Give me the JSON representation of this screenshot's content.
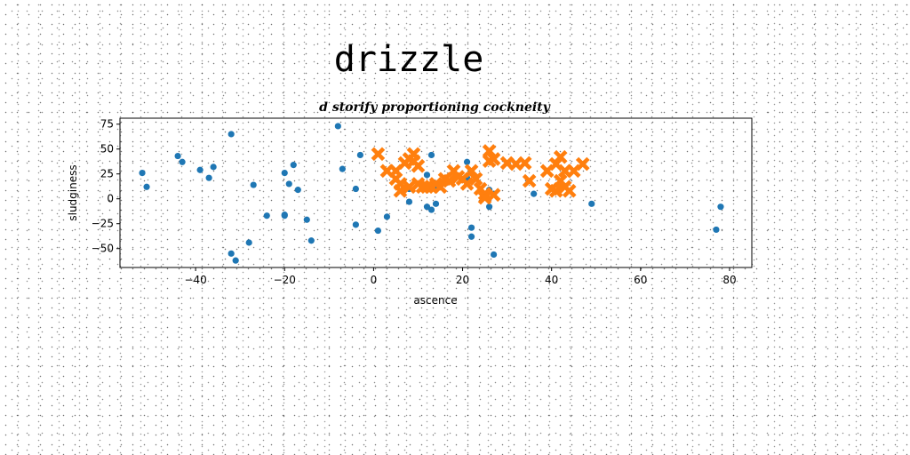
{
  "chart_data": {
    "type": "scatter",
    "title": "drizzle",
    "subtitle": "d storify proportioning cockneity",
    "xlabel": "ascence",
    "ylabel": "sludginess",
    "xlim": [
      -57,
      85
    ],
    "ylim": [
      -69,
      81
    ],
    "xticks": [
      -40,
      -20,
      0,
      20,
      40,
      60,
      80
    ],
    "yticks": [
      -50,
      -25,
      0,
      25,
      50,
      75
    ],
    "grid": false,
    "colors": {
      "series_0": "#1f77b4",
      "series_1": "#ff7f0e"
    },
    "series": [
      {
        "marker": "circle",
        "points": [
          [
            -52,
            26
          ],
          [
            -51,
            12
          ],
          [
            -44,
            43
          ],
          [
            -43,
            37
          ],
          [
            -39,
            29
          ],
          [
            -37,
            21
          ],
          [
            -36,
            32
          ],
          [
            -32,
            65
          ],
          [
            -32,
            -55
          ],
          [
            -31,
            -62
          ],
          [
            -28,
            -44
          ],
          [
            -27,
            14
          ],
          [
            -24,
            -17
          ],
          [
            -20,
            -17
          ],
          [
            -20,
            -16
          ],
          [
            -20,
            26
          ],
          [
            -19,
            15
          ],
          [
            -18,
            34
          ],
          [
            -17,
            9
          ],
          [
            -15,
            -21
          ],
          [
            -14,
            -42
          ],
          [
            -8,
            73
          ],
          [
            -7,
            30
          ],
          [
            -4,
            -26
          ],
          [
            -4,
            10
          ],
          [
            -3,
            44
          ],
          [
            1,
            -32
          ],
          [
            3,
            -18
          ],
          [
            8,
            10
          ],
          [
            8,
            -3
          ],
          [
            12,
            24
          ],
          [
            12,
            -8
          ],
          [
            13,
            -11
          ],
          [
            13,
            44
          ],
          [
            14,
            -5
          ],
          [
            14,
            12
          ],
          [
            21,
            37
          ],
          [
            21,
            21
          ],
          [
            22,
            -29
          ],
          [
            22,
            -38
          ],
          [
            26,
            -8
          ],
          [
            26,
            9
          ],
          [
            27,
            -56
          ],
          [
            27,
            5
          ],
          [
            36,
            5
          ],
          [
            49,
            -5
          ],
          [
            77,
            -31
          ],
          [
            78,
            -8
          ]
        ]
      },
      {
        "marker": "x",
        "points": [
          [
            1,
            45
          ],
          [
            3,
            28
          ],
          [
            5,
            28
          ],
          [
            5,
            20
          ],
          [
            6,
            15
          ],
          [
            6,
            8
          ],
          [
            7,
            36
          ],
          [
            8,
            40
          ],
          [
            8,
            12
          ],
          [
            9,
            45
          ],
          [
            9,
            38
          ],
          [
            10,
            33
          ],
          [
            10,
            15
          ],
          [
            11,
            12
          ],
          [
            12,
            12
          ],
          [
            13,
            12
          ],
          [
            14,
            15
          ],
          [
            15,
            12
          ],
          [
            16,
            20
          ],
          [
            17,
            18
          ],
          [
            18,
            28
          ],
          [
            19,
            22
          ],
          [
            20,
            20
          ],
          [
            21,
            15
          ],
          [
            22,
            28
          ],
          [
            23,
            20
          ],
          [
            24,
            10
          ],
          [
            25,
            5
          ],
          [
            25,
            1
          ],
          [
            26,
            48
          ],
          [
            26,
            38
          ],
          [
            27,
            40
          ],
          [
            27,
            4
          ],
          [
            30,
            36
          ],
          [
            32,
            35
          ],
          [
            34,
            36
          ],
          [
            35,
            18
          ],
          [
            39,
            28
          ],
          [
            40,
            10
          ],
          [
            41,
            8
          ],
          [
            41,
            35
          ],
          [
            42,
            42
          ],
          [
            42,
            18
          ],
          [
            43,
            28
          ],
          [
            43,
            12
          ],
          [
            44,
            8
          ],
          [
            45,
            28
          ],
          [
            47,
            35
          ]
        ]
      }
    ]
  }
}
